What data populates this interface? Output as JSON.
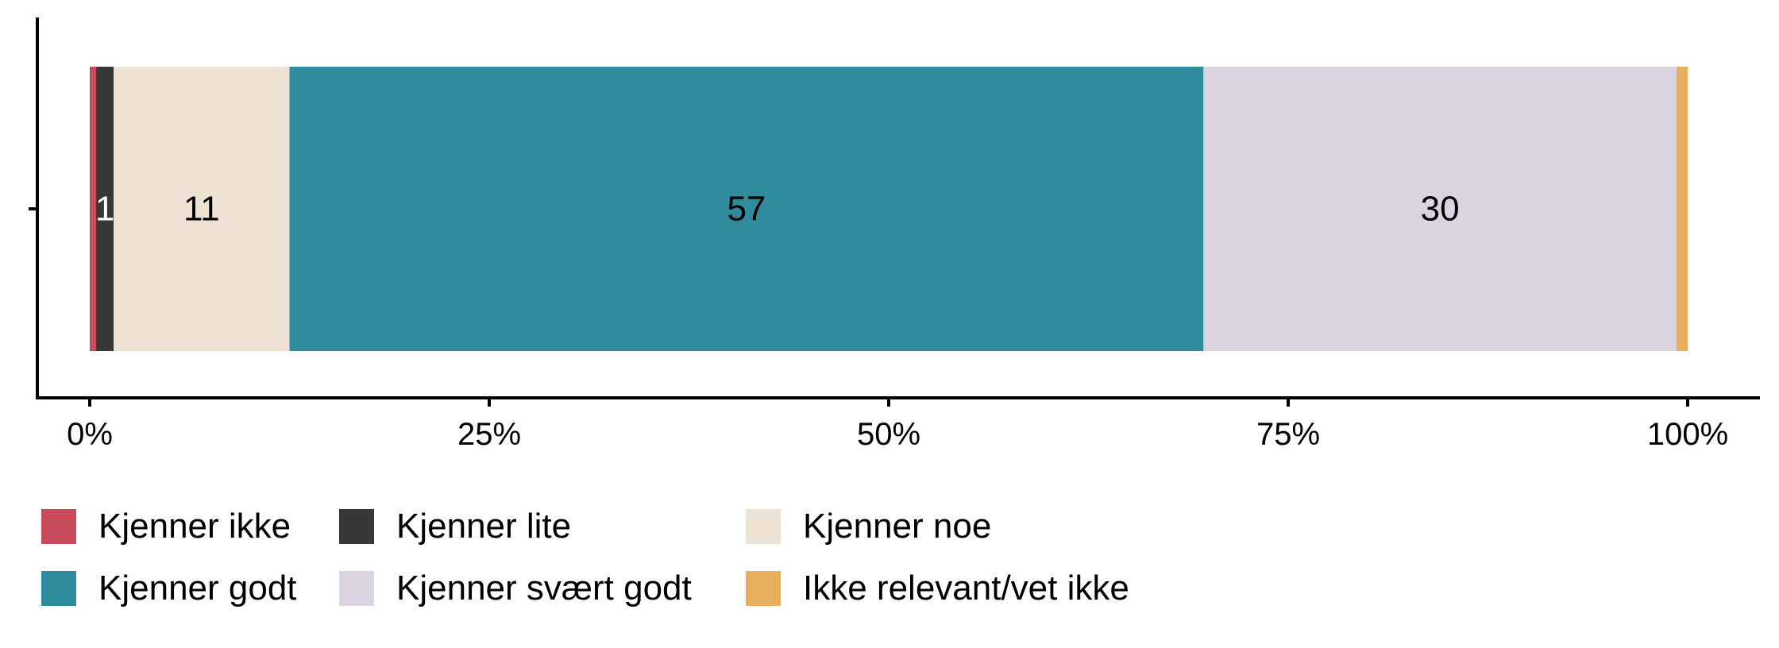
{
  "chart_data": {
    "type": "bar",
    "orientation": "horizontal",
    "stacked": true,
    "categories": [
      ""
    ],
    "series": [
      {
        "name": "Kjenner ikke",
        "values": [
          0.4
        ],
        "color": "#C84B5C",
        "label": "",
        "label_color": "#ffffff"
      },
      {
        "name": "Kjenner lite",
        "values": [
          1.1
        ],
        "color": "#373737",
        "label": "1",
        "label_color": "#ffffff"
      },
      {
        "name": "Kjenner noe",
        "values": [
          11.0
        ],
        "color": "#EDE2D3",
        "label": "11",
        "label_color": "#000000"
      },
      {
        "name": "Kjenner godt",
        "values": [
          57.2
        ],
        "color": "#2E8C9D",
        "label": "57",
        "label_color": "#000000"
      },
      {
        "name": "Kjenner svært godt",
        "values": [
          29.6
        ],
        "color": "#DAD3E0",
        "label": "30",
        "label_color": "#000000"
      },
      {
        "name": "Ikke relevant/vet ikke",
        "values": [
          0.7
        ],
        "color": "#E8AE5B",
        "label": "",
        "label_color": "#000000"
      }
    ],
    "xlim": [
      0,
      100
    ],
    "x_ticks": [
      0,
      25,
      50,
      75,
      100
    ],
    "x_tick_labels": [
      "0%",
      "25%",
      "50%",
      "75%",
      "100%"
    ],
    "title": "",
    "xlabel": "",
    "ylabel": "",
    "grid": false,
    "legend_position": "bottom"
  }
}
